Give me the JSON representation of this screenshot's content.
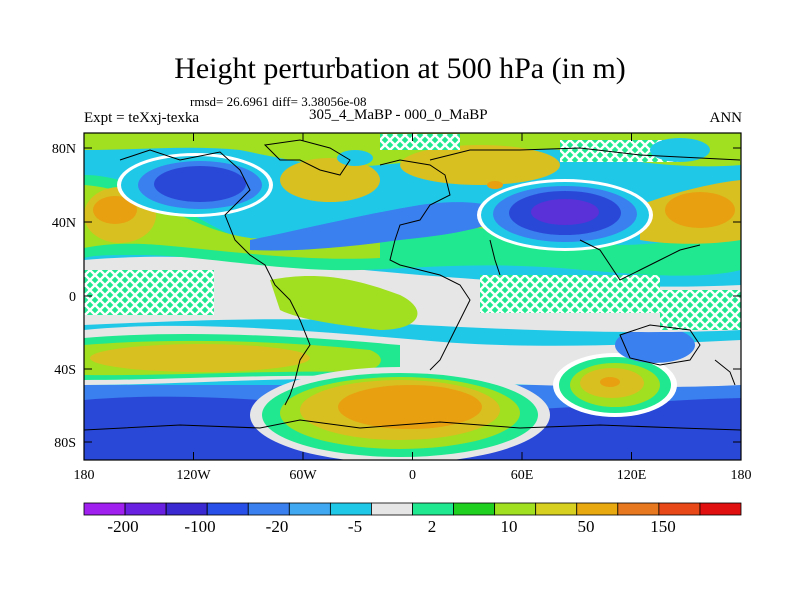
{
  "title": "Height perturbation at 500 hPa (in m)",
  "stats": "rmsd= 26.6961 diff= 3.38056e-08",
  "expt": "Expt = teXxj-texka",
  "subtitle": "305_4_MaBP - 000_0_MaBP",
  "season": "ANN",
  "map": {
    "lon_ticks": [
      "180",
      "120W",
      "60W",
      "0",
      "60E",
      "120E",
      "180"
    ],
    "lat_ticks": [
      "80N",
      "40N",
      "0",
      "40S",
      "80S"
    ]
  },
  "colorbar": {
    "colors": [
      "#a020f0",
      "#6a20e0",
      "#3a28d0",
      "#2850e8",
      "#3a80ee",
      "#40a8f0",
      "#20c8e8",
      "#e6e6e6",
      "#20e890",
      "#20d020",
      "#a0e020",
      "#d8d020",
      "#e8a810",
      "#e87820",
      "#e84818",
      "#e01010"
    ],
    "labels": [
      "-200",
      "-100",
      "-20",
      "-5",
      "2",
      "10",
      "50",
      "150"
    ]
  },
  "field_colors": {
    "deep_neg": "#5a30d8",
    "strong_neg": "#2a48d8",
    "neg": "#3a80ee",
    "weak_neg": "#20c8e8",
    "zero": "#e6e6e6",
    "weak_pos": "#20e890",
    "pos": "#a0e020",
    "strong_pos": "#d8c020",
    "max_pos": "#e8a010"
  }
}
